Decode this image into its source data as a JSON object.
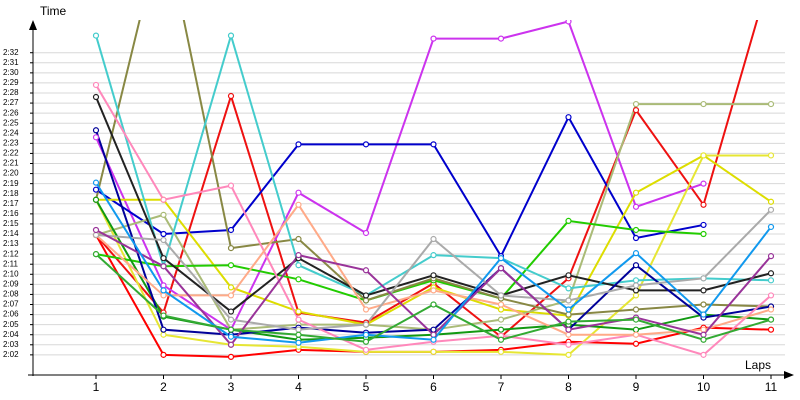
{
  "chart_data": {
    "type": "line",
    "y_label": "Time",
    "x_label": "Laps",
    "categories": [
      "1",
      "2",
      "3",
      "4",
      "5",
      "6",
      "7",
      "8",
      "9",
      "10",
      "11"
    ],
    "ylim": [
      120,
      155
    ],
    "yticks": [
      {
        "value": 122,
        "label": "2:02"
      },
      {
        "value": 123,
        "label": "2:03"
      },
      {
        "value": 124,
        "label": "2:04"
      },
      {
        "value": 125,
        "label": "2:05"
      },
      {
        "value": 126,
        "label": "2:06"
      },
      {
        "value": 127,
        "label": "2:07"
      },
      {
        "value": 128,
        "label": "2:08"
      },
      {
        "value": 129,
        "label": "2:09"
      },
      {
        "value": 130,
        "label": "2:10"
      },
      {
        "value": 131,
        "label": "2:11"
      },
      {
        "value": 132,
        "label": "2:12"
      },
      {
        "value": 133,
        "label": "2:13"
      },
      {
        "value": 134,
        "label": "2:14"
      },
      {
        "value": 135,
        "label": "2:15"
      },
      {
        "value": 136,
        "label": "2:16"
      },
      {
        "value": 137,
        "label": "2:17"
      },
      {
        "value": 138,
        "label": "2:18"
      },
      {
        "value": 139,
        "label": "2:19"
      },
      {
        "value": 140,
        "label": "2:20"
      },
      {
        "value": 141,
        "label": "2:21"
      },
      {
        "value": 142,
        "label": "2:22"
      },
      {
        "value": 143,
        "label": "2:23"
      },
      {
        "value": 144,
        "label": "2:24"
      },
      {
        "value": 145,
        "label": "2:25"
      },
      {
        "value": 146,
        "label": "2:26"
      },
      {
        "value": 147,
        "label": "2:27"
      },
      {
        "value": 148,
        "label": "2:28"
      },
      {
        "value": 149,
        "label": "2:29"
      },
      {
        "value": 150,
        "label": "2:30"
      },
      {
        "value": 151,
        "label": "2:31"
      },
      {
        "value": 152,
        "label": "2:32"
      }
    ],
    "grid": true,
    "series": [
      {
        "color": "#ff0000",
        "values": [
          133.9,
          122,
          121.8,
          122.5,
          122.3,
          122.3,
          122.5,
          123.3,
          123.1,
          124.7,
          124.5
        ]
      },
      {
        "color": "#ee1111",
        "values": [
          133.9,
          126.2,
          147.7,
          126.2,
          125.2,
          129.1,
          123.8,
          129.6,
          146.3,
          136.9,
          160
        ]
      },
      {
        "color": "#cc33ee",
        "values": [
          143.6,
          128.9,
          124.5,
          138.1,
          134.1,
          153.4,
          153.4,
          155.1,
          136.7,
          139.0,
          null
        ]
      },
      {
        "color": "#0000cc",
        "values": [
          138.4,
          134.0,
          134.4,
          142.9,
          142.9,
          142.9,
          131.8,
          145.6,
          133.6,
          134.9,
          null
        ]
      },
      {
        "color": "#dddd00",
        "values": [
          137.4,
          137.4,
          128.7,
          126.3,
          125.0,
          128.7,
          126.5,
          125.9,
          138.1,
          141.8,
          137.2
        ]
      },
      {
        "color": "#e6e633",
        "values": [
          137.4,
          124.0,
          123.0,
          122.8,
          122.3,
          122.3,
          122.3,
          122.0,
          127.9,
          141.8,
          141.8
        ]
      },
      {
        "color": "#aabb77",
        "values": [
          133.9,
          135.9,
          124.5,
          125.0,
          125.0,
          124.5,
          125.5,
          127.4,
          146.9,
          146.9,
          146.9
        ]
      },
      {
        "color": "#22cc00",
        "values": [
          132.0,
          130.8,
          130.9,
          129.5,
          127.4,
          129.4,
          127.6,
          135.3,
          134.4,
          134.0,
          null
        ]
      },
      {
        "color": "#888844",
        "values": [
          137.4,
          165,
          132.6,
          133.5,
          127.4,
          129.6,
          127.6,
          126.0,
          126.5,
          127.0,
          126.8
        ]
      },
      {
        "color": "#119911",
        "values": [
          137.4,
          125.8,
          124.5,
          123.5,
          123.7,
          124.0,
          124.5,
          125.0,
          124.5,
          126.0,
          125.5
        ]
      },
      {
        "color": "#44cccc",
        "values": [
          153.7,
          130.8,
          153.7,
          130.9,
          127.9,
          131.9,
          131.6,
          128.6,
          129.4,
          129.6,
          129.4
        ]
      },
      {
        "color": "#222222",
        "values": [
          147.6,
          131.6,
          126.3,
          131.6,
          127.9,
          129.9,
          127.9,
          129.9,
          128.4,
          128.4,
          130.1
        ]
      },
      {
        "color": "#000099",
        "values": [
          144.3,
          124.5,
          124.0,
          124.7,
          124.2,
          124.5,
          130.6,
          124.5,
          130.9,
          125.7,
          126.8
        ]
      },
      {
        "color": "#ff88bb",
        "values": [
          148.8,
          137.4,
          138.8,
          125.5,
          122.5,
          123.3,
          123.9,
          123.0,
          124.0,
          122.0,
          127.9
        ]
      },
      {
        "color": "#ffaa88",
        "values": [
          133.9,
          127.9,
          127.9,
          136.9,
          126.5,
          128.4,
          127.0,
          124.0,
          124.0,
          124.5,
          126.5
        ]
      },
      {
        "color": "#aaaaaa",
        "values": [
          133.9,
          133.4,
          125.5,
          124.5,
          125.0,
          133.5,
          127.9,
          127.4,
          128.9,
          129.6,
          136.4
        ]
      },
      {
        "color": "#993399",
        "values": [
          134.4,
          130.8,
          123.0,
          131.9,
          130.4,
          124.0,
          130.6,
          124.5,
          125.7,
          124.0,
          131.8
        ]
      },
      {
        "color": "#1199ee",
        "values": [
          139.1,
          128.4,
          123.8,
          123.2,
          124.0,
          123.5,
          131.6,
          126.5,
          132.1,
          126.0,
          134.7
        ]
      },
      {
        "color": "#33aa33",
        "values": [
          132.0,
          125.9,
          124.5,
          124.0,
          123.3,
          127.0,
          123.5,
          125.3,
          125.5,
          123.5,
          125.5
        ]
      }
    ]
  }
}
